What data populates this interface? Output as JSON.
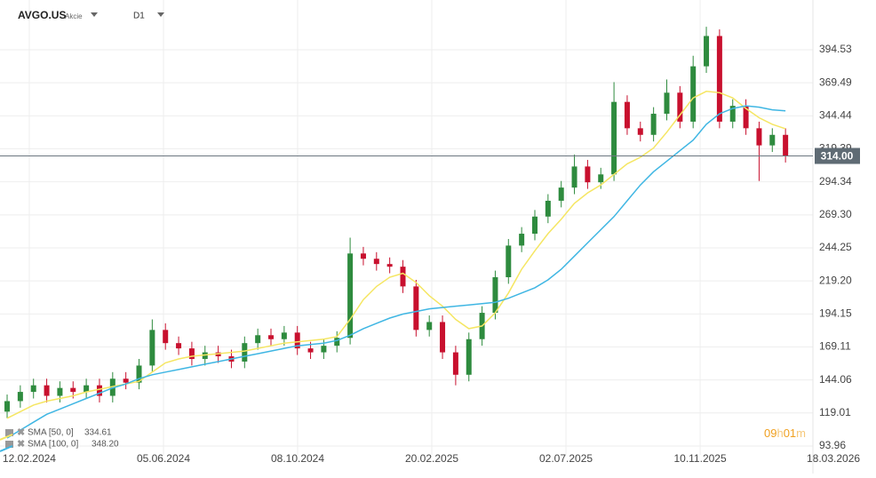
{
  "chart_data": {
    "type": "candlestick",
    "symbol": "AVGO.US",
    "asset_class": "Akcie",
    "timeframe": "D1",
    "countdown": [
      "09",
      "h",
      "01",
      "m"
    ],
    "up_color": "#2e8b3e",
    "down_color": "#c8102e",
    "open": [
      120,
      128,
      135,
      140,
      132,
      138,
      135,
      140,
      132,
      145,
      142,
      155,
      182,
      172,
      168,
      160,
      165,
      162,
      158,
      172,
      178,
      175,
      180,
      168,
      165,
      170,
      176,
      240,
      236,
      232,
      230,
      215,
      182,
      188,
      165,
      148,
      175,
      195,
      222,
      246,
      255,
      268,
      280,
      290,
      306,
      294,
      300,
      355,
      335,
      330,
      346,
      362,
      340,
      382,
      405,
      340,
      352,
      335,
      322,
      330
    ],
    "high": [
      133,
      140,
      145,
      145,
      143,
      143,
      145,
      145,
      150,
      150,
      160,
      190,
      187,
      177,
      173,
      170,
      170,
      167,
      177,
      183,
      183,
      185,
      185,
      173,
      175,
      181,
      252,
      245,
      241,
      237,
      235,
      220,
      193,
      193,
      170,
      180,
      200,
      227,
      251,
      260,
      273,
      285,
      295,
      315,
      311,
      305,
      370,
      360,
      340,
      351,
      372,
      367,
      390,
      412,
      410,
      357,
      357,
      340,
      335,
      335
    ],
    "low": [
      115,
      123,
      130,
      127,
      127,
      130,
      130,
      127,
      127,
      137,
      137,
      150,
      167,
      163,
      155,
      155,
      157,
      153,
      153,
      167,
      170,
      170,
      163,
      160,
      160,
      165,
      171,
      231,
      227,
      225,
      210,
      177,
      177,
      160,
      140,
      143,
      170,
      190,
      217,
      241,
      250,
      263,
      275,
      285,
      289,
      289,
      295,
      330,
      325,
      325,
      341,
      335,
      335,
      377,
      335,
      335,
      330,
      295,
      317,
      309
    ],
    "close": [
      128,
      135,
      140,
      132,
      138,
      135,
      140,
      132,
      145,
      142,
      155,
      182,
      172,
      168,
      160,
      165,
      162,
      158,
      172,
      178,
      175,
      180,
      168,
      165,
      170,
      176,
      240,
      236,
      232,
      230,
      215,
      182,
      188,
      165,
      148,
      175,
      195,
      222,
      246,
      255,
      268,
      280,
      290,
      306,
      294,
      300,
      355,
      335,
      330,
      346,
      362,
      340,
      382,
      405,
      340,
      352,
      335,
      322,
      330,
      314
    ],
    "series": [
      {
        "name": "SMA [50, 0]",
        "color": "#f5e663",
        "values": [
          115,
          120,
          125,
          128,
          130,
          132,
          135,
          137,
          139,
          141,
          143,
          150,
          157,
          160,
          162,
          163,
          164,
          165,
          166,
          168,
          170,
          172,
          173,
          174,
          175,
          177,
          190,
          205,
          215,
          222,
          225,
          218,
          208,
          200,
          190,
          183,
          185,
          195,
          210,
          228,
          242,
          255,
          266,
          278,
          286,
          292,
          300,
          308,
          313,
          320,
          332,
          345,
          358,
          363,
          362,
          358,
          350,
          343,
          338,
          334.61
        ],
        "value_labels": [
          null,
          null,
          null,
          null,
          null,
          null,
          null,
          null,
          null,
          null,
          null,
          null,
          null,
          null,
          null,
          null,
          null,
          null,
          null,
          null,
          null,
          null,
          null,
          null,
          null,
          null,
          null,
          null,
          null,
          null,
          null,
          null,
          null,
          null,
          null,
          null,
          null,
          null,
          null,
          null,
          null,
          null,
          null,
          null,
          null,
          null,
          null,
          null,
          null,
          null,
          null,
          null,
          null,
          null,
          null,
          null,
          null,
          null,
          null,
          "334.61"
        ]
      },
      {
        "name": "SMA [100, 0]",
        "color": "#3fb6e3",
        "values": [
          100,
          106,
          112,
          118,
          122,
          126,
          130,
          134,
          138,
          141,
          145,
          148,
          150,
          152,
          154,
          156,
          158,
          160,
          162,
          164,
          166,
          168,
          170,
          171,
          172,
          174,
          178,
          183,
          187,
          191,
          194,
          196,
          198,
          199,
          200,
          201,
          202,
          203,
          206,
          210,
          214,
          220,
          228,
          238,
          248,
          258,
          268,
          280,
          292,
          302,
          310,
          318,
          326,
          338,
          346,
          350,
          352,
          351,
          349,
          348.2
        ],
        "value_labels": [
          null,
          null,
          null,
          null,
          null,
          null,
          null,
          null,
          null,
          null,
          null,
          null,
          null,
          null,
          null,
          null,
          null,
          null,
          null,
          null,
          null,
          null,
          null,
          null,
          null,
          null,
          null,
          null,
          null,
          null,
          null,
          null,
          null,
          null,
          null,
          null,
          null,
          null,
          null,
          null,
          null,
          null,
          null,
          null,
          null,
          null,
          null,
          null,
          null,
          null,
          null,
          null,
          null,
          null,
          null,
          null,
          null,
          null,
          null,
          "348.20"
        ]
      }
    ],
    "last_price": {
      "value": 314,
      "label": "314.00"
    },
    "ylim": [
      87.2,
      432.3
    ],
    "yticks": [
      93.96,
      119.01,
      144.06,
      169.11,
      194.15,
      {
        "value": 219.2,
        "label": "219.20"
      },
      244.25,
      {
        "value": 269.3,
        "label": "269.30"
      },
      294.34,
      319.39,
      344.44,
      369.49,
      394.53
    ],
    "xlim": [
      -0.54,
      65.86
    ],
    "xticks": [
      {
        "value": 1.68,
        "label": "12.02.2024"
      },
      {
        "value": 11.85,
        "label": "05.06.2024"
      },
      {
        "value": 22.02,
        "label": "08.10.2024"
      },
      {
        "value": 32.19,
        "label": "20.02.2025"
      },
      {
        "value": 42.36,
        "label": "02.07.2025"
      },
      {
        "value": 52.53,
        "label": "10.11.2025"
      },
      {
        "value": 62.63,
        "label": "18.03.2026"
      }
    ],
    "grid": true
  }
}
